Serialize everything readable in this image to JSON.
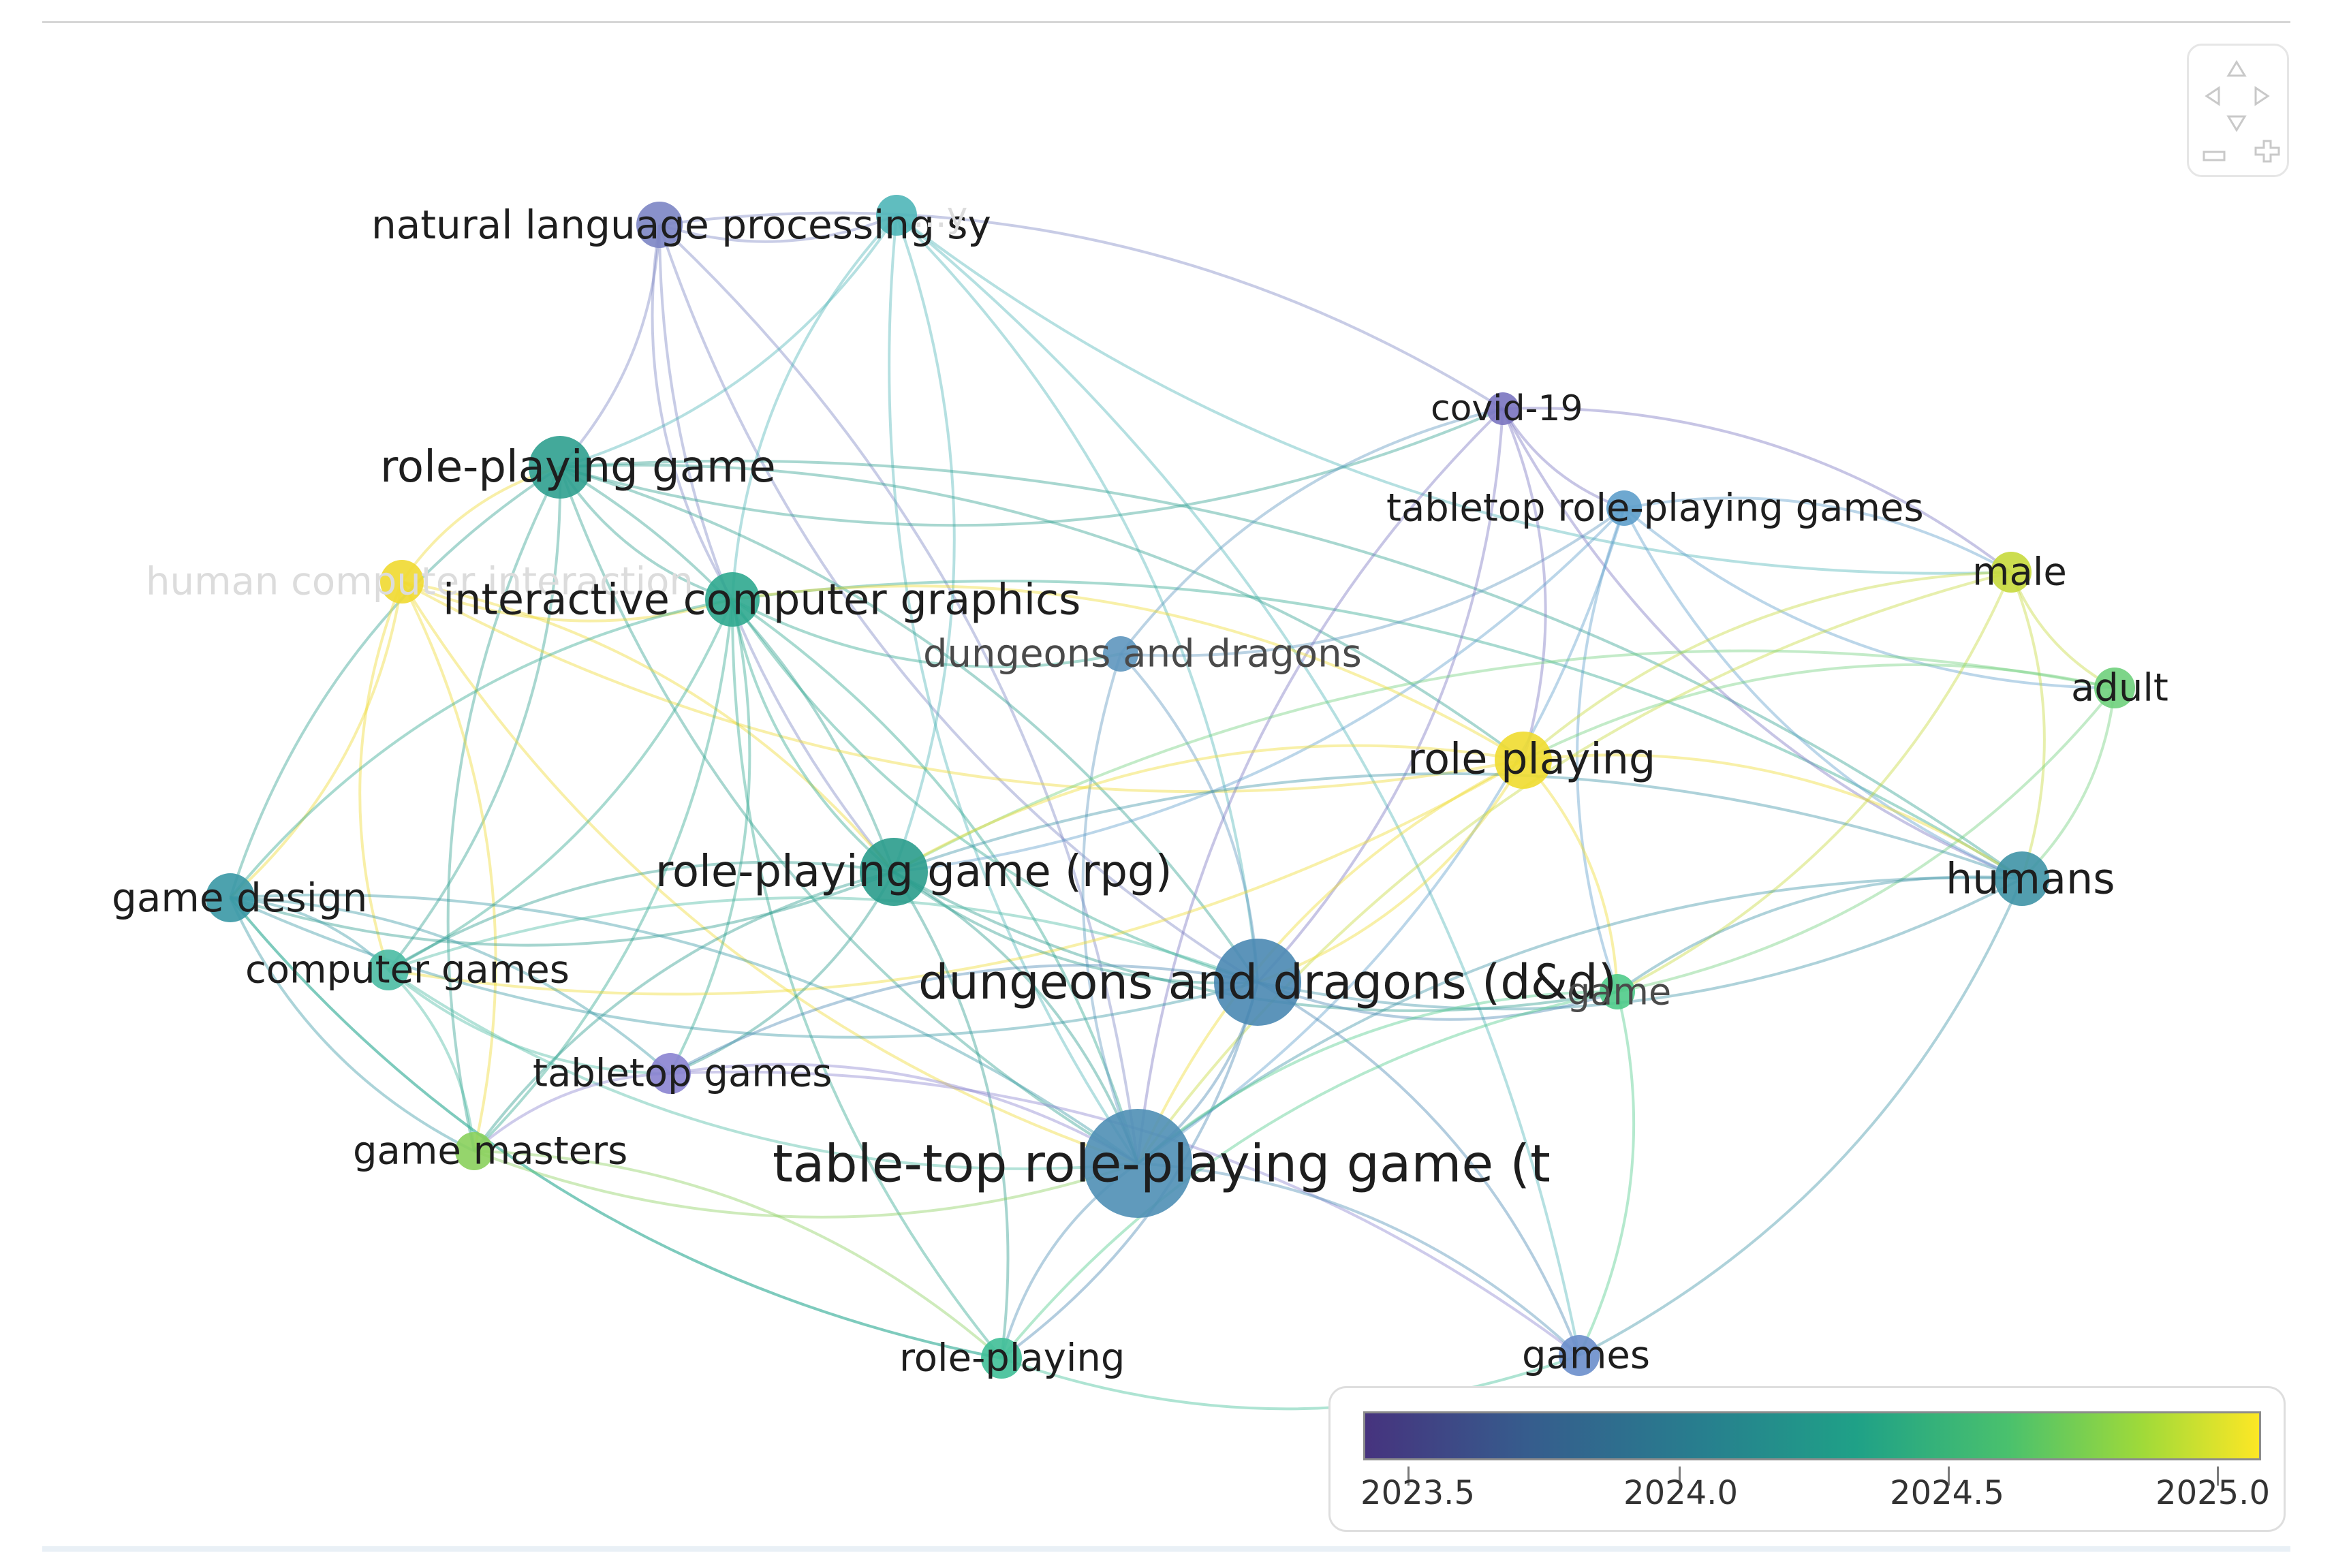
{
  "nodes": [
    {
      "id": "nlp",
      "label": "natural language processing sy",
      "color": "#7c85c4",
      "faint": false
    },
    {
      "id": "nlp2",
      "label": "...y",
      "color": "#4fb6b8",
      "faint": true
    },
    {
      "id": "rpg_game",
      "label": "role-playing game",
      "color": "#2fa08f",
      "faint": false
    },
    {
      "id": "hci",
      "label": "human computer interaction",
      "color": "#efd930",
      "faint": true
    },
    {
      "id": "icg",
      "label": "interactive computer graphics",
      "color": "#2fa88f",
      "faint": false
    },
    {
      "id": "dnd_small",
      "label": "dungeons and dragons",
      "color": "#5e96be",
      "faint": false,
      "muted": true
    },
    {
      "id": "covid",
      "label": "covid-19",
      "color": "#7a74c0",
      "faint": false
    },
    {
      "id": "trpgs",
      "label": "tabletop role-playing games",
      "color": "#5e9ecb",
      "faint": false
    },
    {
      "id": "male",
      "label": "male",
      "color": "#c6d93c",
      "faint": false
    },
    {
      "id": "adult",
      "label": "adult",
      "color": "#6fd07c",
      "faint": false
    },
    {
      "id": "role_playing",
      "label": "role playing",
      "color": "#efdc30",
      "faint": false
    },
    {
      "id": "humans",
      "label": "humans",
      "color": "#3f94a6",
      "faint": false
    },
    {
      "id": "rpg_rpg",
      "label": "role-playing game (rpg)",
      "color": "#2a9c8c",
      "faint": false
    },
    {
      "id": "game_design",
      "label": "game design",
      "color": "#3a98a5",
      "faint": false
    },
    {
      "id": "computer_games",
      "label": "computer games",
      "color": "#4bbba3",
      "faint": false
    },
    {
      "id": "dnd_big",
      "label": "dungeons and dragons (d&d)",
      "color": "#4a88b2",
      "faint": false
    },
    {
      "id": "game",
      "label": "game",
      "color": "#4fcb8a",
      "faint": false,
      "muted": true
    },
    {
      "id": "tabletop_games",
      "label": "tabletop games",
      "color": "#8a83d0",
      "faint": false
    },
    {
      "id": "game_masters",
      "label": "game masters",
      "color": "#8ad05c",
      "faint": false
    },
    {
      "id": "ttrpg",
      "label": "table-top role-playing game (t",
      "color": "#4f8fb5",
      "faint": false
    },
    {
      "id": "role_playing_hy",
      "label": "role-playing",
      "color": "#3fbf97",
      "faint": false
    },
    {
      "id": "games",
      "label": "games",
      "color": "#6a8ecb",
      "faint": false
    }
  ],
  "edges": [
    [
      "nlp",
      "nlp2"
    ],
    [
      "nlp",
      "rpg_game"
    ],
    [
      "nlp",
      "icg"
    ],
    [
      "nlp",
      "covid"
    ],
    [
      "nlp",
      "rpg_rpg"
    ],
    [
      "nlp",
      "ttrpg"
    ],
    [
      "nlp",
      "dnd_big"
    ],
    [
      "nlp2",
      "rpg_game"
    ],
    [
      "nlp2",
      "icg"
    ],
    [
      "nlp2",
      "rpg_rpg"
    ],
    [
      "nlp2",
      "ttrpg"
    ],
    [
      "nlp2",
      "dnd_big"
    ],
    [
      "nlp2",
      "male"
    ],
    [
      "nlp2",
      "games"
    ],
    [
      "rpg_game",
      "icg"
    ],
    [
      "rpg_game",
      "rpg_rpg"
    ],
    [
      "rpg_game",
      "ttrpg"
    ],
    [
      "rpg_game",
      "dnd_big"
    ],
    [
      "rpg_game",
      "game_design"
    ],
    [
      "rpg_game",
      "computer_games"
    ],
    [
      "rpg_game",
      "game_masters"
    ],
    [
      "rpg_game",
      "role_playing"
    ],
    [
      "rpg_game",
      "covid"
    ],
    [
      "rpg_game",
      "humans"
    ],
    [
      "hci",
      "icg"
    ],
    [
      "hci",
      "rpg_game"
    ],
    [
      "hci",
      "role_playing"
    ],
    [
      "hci",
      "game_design"
    ],
    [
      "hci",
      "computer_games"
    ],
    [
      "hci",
      "game_masters"
    ],
    [
      "hci",
      "ttrpg"
    ],
    [
      "hci",
      "rpg_rpg"
    ],
    [
      "icg",
      "rpg_rpg"
    ],
    [
      "icg",
      "ttrpg"
    ],
    [
      "icg",
      "dnd_big"
    ],
    [
      "icg",
      "computer_games"
    ],
    [
      "icg",
      "game_design"
    ],
    [
      "icg",
      "game_masters"
    ],
    [
      "icg",
      "dnd_small"
    ],
    [
      "icg",
      "tabletop_games"
    ],
    [
      "icg",
      "role_playing_hy"
    ],
    [
      "icg",
      "humans"
    ],
    [
      "dnd_small",
      "ttrpg"
    ],
    [
      "dnd_small",
      "covid"
    ],
    [
      "dnd_small",
      "trpgs"
    ],
    [
      "dnd_small",
      "dnd_big"
    ],
    [
      "covid",
      "trpgs"
    ],
    [
      "covid",
      "male"
    ],
    [
      "covid",
      "humans"
    ],
    [
      "covid",
      "role_playing"
    ],
    [
      "covid",
      "ttrpg"
    ],
    [
      "covid",
      "dnd_big"
    ],
    [
      "trpgs",
      "adult"
    ],
    [
      "trpgs",
      "male"
    ],
    [
      "trpgs",
      "humans"
    ],
    [
      "trpgs",
      "ttrpg"
    ],
    [
      "trpgs",
      "game"
    ],
    [
      "trpgs",
      "rpg_rpg"
    ],
    [
      "male",
      "adult"
    ],
    [
      "male",
      "humans"
    ],
    [
      "male",
      "role_playing"
    ],
    [
      "male",
      "game"
    ],
    [
      "male",
      "ttrpg"
    ],
    [
      "adult",
      "humans"
    ],
    [
      "adult",
      "role_playing"
    ],
    [
      "adult",
      "game"
    ],
    [
      "adult",
      "rpg_rpg"
    ],
    [
      "role_playing",
      "humans"
    ],
    [
      "role_playing",
      "ttrpg"
    ],
    [
      "role_playing",
      "dnd_big"
    ],
    [
      "role_playing",
      "rpg_rpg"
    ],
    [
      "role_playing",
      "game"
    ],
    [
      "role_playing",
      "icg"
    ],
    [
      "role_playing",
      "computer_games"
    ],
    [
      "humans",
      "ttrpg"
    ],
    [
      "humans",
      "dnd_big"
    ],
    [
      "humans",
      "game"
    ],
    [
      "humans",
      "games"
    ],
    [
      "humans",
      "rpg_rpg"
    ],
    [
      "rpg_rpg",
      "ttrpg"
    ],
    [
      "rpg_rpg",
      "dnd_big"
    ],
    [
      "rpg_rpg",
      "game_design"
    ],
    [
      "rpg_rpg",
      "computer_games"
    ],
    [
      "rpg_rpg",
      "tabletop_games"
    ],
    [
      "rpg_rpg",
      "game_masters"
    ],
    [
      "rpg_rpg",
      "role_playing_hy"
    ],
    [
      "rpg_rpg",
      "game"
    ],
    [
      "game_design",
      "computer_games"
    ],
    [
      "game_design",
      "game_masters"
    ],
    [
      "game_design",
      "ttrpg"
    ],
    [
      "game_design",
      "dnd_big"
    ],
    [
      "game_design",
      "tabletop_games"
    ],
    [
      "game_design",
      "role_playing_hy"
    ],
    [
      "computer_games",
      "game_masters"
    ],
    [
      "computer_games",
      "ttrpg"
    ],
    [
      "computer_games",
      "dnd_big"
    ],
    [
      "computer_games",
      "tabletop_games"
    ],
    [
      "dnd_big",
      "ttrpg"
    ],
    [
      "dnd_big",
      "game"
    ],
    [
      "dnd_big",
      "games"
    ],
    [
      "dnd_big",
      "tabletop_games"
    ],
    [
      "dnd_big",
      "role_playing_hy"
    ],
    [
      "game",
      "ttrpg"
    ],
    [
      "game",
      "games"
    ],
    [
      "game",
      "role_playing_hy"
    ],
    [
      "tabletop_games",
      "ttrpg"
    ],
    [
      "tabletop_games",
      "game_masters"
    ],
    [
      "tabletop_games",
      "games"
    ],
    [
      "game_masters",
      "ttrpg"
    ],
    [
      "game_masters",
      "role_playing_hy"
    ],
    [
      "ttrpg",
      "role_playing_hy"
    ],
    [
      "ttrpg",
      "games"
    ],
    [
      "role_playing_hy",
      "games"
    ],
    [
      "role_playing_hy",
      "game_design"
    ]
  ],
  "legend": {
    "ticks": [
      "2023.5",
      "2024.0",
      "2024.5",
      "2025.0"
    ]
  }
}
